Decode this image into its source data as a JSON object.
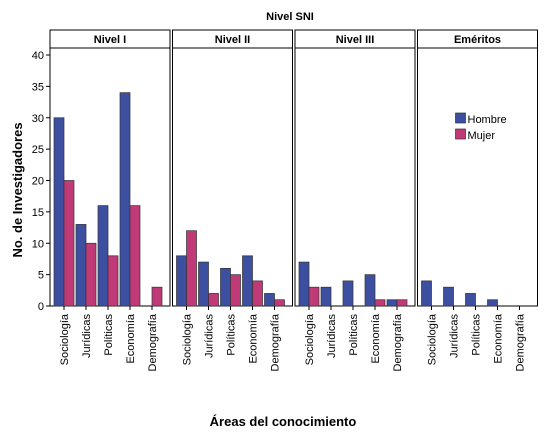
{
  "chart_data": {
    "type": "bar",
    "title": "Nivel SNI",
    "xlabel": "Áreas del conocimiento",
    "ylabel": "No. de Investigadores",
    "ylim": [
      0,
      40
    ],
    "yticks": [
      "0",
      "5",
      "10",
      "15",
      "20",
      "25",
      "30",
      "35",
      "40"
    ],
    "grid": false,
    "legend_position": "top-right of last panel",
    "categories": [
      "Sociología",
      "Jurídicas",
      "Políticas",
      "Economía",
      "Demografía"
    ],
    "colors": {
      "Hombre": "#3c4fa0",
      "Mujer": "#c03a78"
    },
    "panels": [
      {
        "label": "Nivel I",
        "series": [
          {
            "name": "Hombre",
            "values": [
              30,
              13,
              16,
              34,
              0
            ]
          },
          {
            "name": "Mujer",
            "values": [
              20,
              10,
              8,
              16,
              3
            ]
          }
        ]
      },
      {
        "label": "Nivel II",
        "series": [
          {
            "name": "Hombre",
            "values": [
              8,
              7,
              6,
              8,
              2
            ]
          },
          {
            "name": "Mujer",
            "values": [
              12,
              2,
              5,
              4,
              1
            ]
          }
        ]
      },
      {
        "label": "Nivel III",
        "series": [
          {
            "name": "Hombre",
            "values": [
              7,
              3,
              4,
              5,
              1
            ]
          },
          {
            "name": "Mujer",
            "values": [
              3,
              0,
              0,
              1,
              1
            ]
          }
        ]
      },
      {
        "label": "Eméritos",
        "series": [
          {
            "name": "Hombre",
            "values": [
              4,
              3,
              2,
              1,
              0
            ]
          },
          {
            "name": "Mujer",
            "values": [
              0,
              0,
              0,
              0,
              0
            ]
          }
        ]
      }
    ],
    "legend": [
      "Hombre",
      "Mujer"
    ]
  }
}
